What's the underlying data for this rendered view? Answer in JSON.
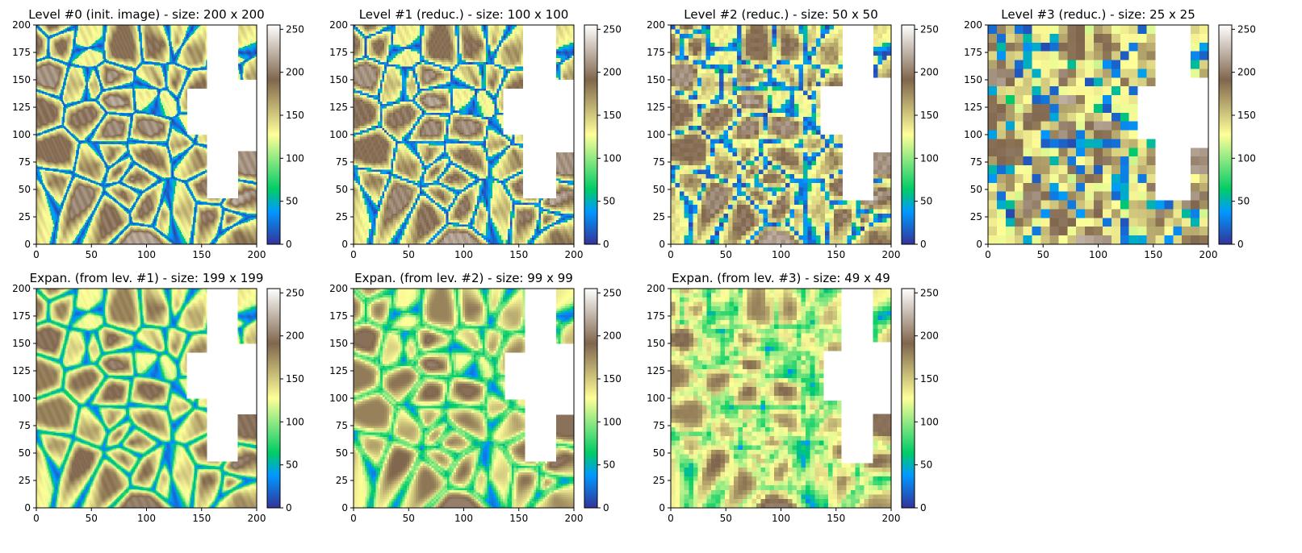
{
  "colors": {
    "colormap": "terrain",
    "stops": [
      "#333399",
      "#0099ff",
      "#00cc66",
      "#ffff99",
      "#80664d",
      "#ffffff"
    ]
  },
  "chart_data": [
    {
      "type": "heatmap",
      "title": "Level #0 (init. image) - size: 200 x 200",
      "grid_size": 200,
      "row": "top",
      "xlim": [
        0,
        200
      ],
      "ylim": [
        0,
        200
      ],
      "x_ticks": [
        "0",
        "50",
        "100",
        "150",
        "200"
      ],
      "y_ticks": [
        "0",
        "25",
        "50",
        "75",
        "100",
        "125",
        "150",
        "175",
        "200"
      ],
      "colorbar": {
        "min": 0,
        "max": 255,
        "ticks": [
          "0",
          "50",
          "100",
          "150",
          "200",
          "250"
        ]
      },
      "content": "stone texture with white masked region on right"
    },
    {
      "type": "heatmap",
      "title": "Level #1 (reduc.) - size: 100 x 100",
      "grid_size": 100,
      "row": "top",
      "xlim": [
        0,
        200
      ],
      "ylim": [
        0,
        200
      ],
      "x_ticks": [
        "0",
        "50",
        "100",
        "150",
        "200"
      ],
      "y_ticks": [
        "0",
        "25",
        "50",
        "75",
        "100",
        "125",
        "150",
        "175",
        "200"
      ],
      "colorbar": {
        "min": 0,
        "max": 255,
        "ticks": [
          "0",
          "50",
          "100",
          "150",
          "200",
          "250"
        ]
      }
    },
    {
      "type": "heatmap",
      "title": "Level #2 (reduc.) - size: 50 x 50",
      "grid_size": 50,
      "row": "top",
      "xlim": [
        0,
        200
      ],
      "ylim": [
        0,
        200
      ],
      "x_ticks": [
        "0",
        "50",
        "100",
        "150",
        "200"
      ],
      "y_ticks": [
        "0",
        "25",
        "50",
        "75",
        "100",
        "125",
        "150",
        "175",
        "200"
      ],
      "colorbar": {
        "min": 0,
        "max": 255,
        "ticks": [
          "0",
          "50",
          "100",
          "150",
          "200",
          "250"
        ]
      }
    },
    {
      "type": "heatmap",
      "title": "Level #3 (reduc.) - size: 25 x 25",
      "grid_size": 25,
      "row": "top",
      "xlim": [
        0,
        200
      ],
      "ylim": [
        0,
        200
      ],
      "x_ticks": [
        "0",
        "50",
        "100",
        "150",
        "200"
      ],
      "y_ticks": [
        "0",
        "25",
        "50",
        "75",
        "100",
        "125",
        "150",
        "175",
        "200"
      ],
      "colorbar": {
        "min": 0,
        "max": 255,
        "ticks": [
          "0",
          "50",
          "100",
          "150",
          "200",
          "250"
        ]
      }
    },
    {
      "type": "heatmap",
      "title": "Expan. (from lev. #1) - size: 199 x 199",
      "grid_size": 199,
      "row": "bottom",
      "xlim": [
        0,
        200
      ],
      "ylim": [
        0,
        200
      ],
      "x_ticks": [
        "0",
        "50",
        "100",
        "150",
        "200"
      ],
      "y_ticks": [
        "0",
        "25",
        "50",
        "75",
        "100",
        "125",
        "150",
        "175",
        "200"
      ],
      "colorbar": {
        "min": 0,
        "max": 255,
        "ticks": [
          "0",
          "50",
          "100",
          "150",
          "200",
          "250"
        ]
      }
    },
    {
      "type": "heatmap",
      "title": "Expan. (from lev. #2) - size: 99 x 99",
      "grid_size": 99,
      "row": "bottom",
      "xlim": [
        0,
        200
      ],
      "ylim": [
        0,
        200
      ],
      "x_ticks": [
        "0",
        "50",
        "100",
        "150",
        "200"
      ],
      "y_ticks": [
        "0",
        "25",
        "50",
        "75",
        "100",
        "125",
        "150",
        "175",
        "200"
      ],
      "colorbar": {
        "min": 0,
        "max": 255,
        "ticks": [
          "0",
          "50",
          "100",
          "150",
          "200",
          "250"
        ]
      }
    },
    {
      "type": "heatmap",
      "title": "Expan. (from lev. #3) - size: 49 x 49",
      "grid_size": 49,
      "row": "bottom",
      "xlim": [
        0,
        200
      ],
      "ylim": [
        0,
        200
      ],
      "x_ticks": [
        "0",
        "50",
        "100",
        "150",
        "200"
      ],
      "y_ticks": [
        "0",
        "25",
        "50",
        "75",
        "100",
        "125",
        "150",
        "175",
        "200"
      ],
      "colorbar": {
        "min": 0,
        "max": 255,
        "ticks": [
          "0",
          "50",
          "100",
          "150",
          "200",
          "250"
        ]
      }
    }
  ]
}
